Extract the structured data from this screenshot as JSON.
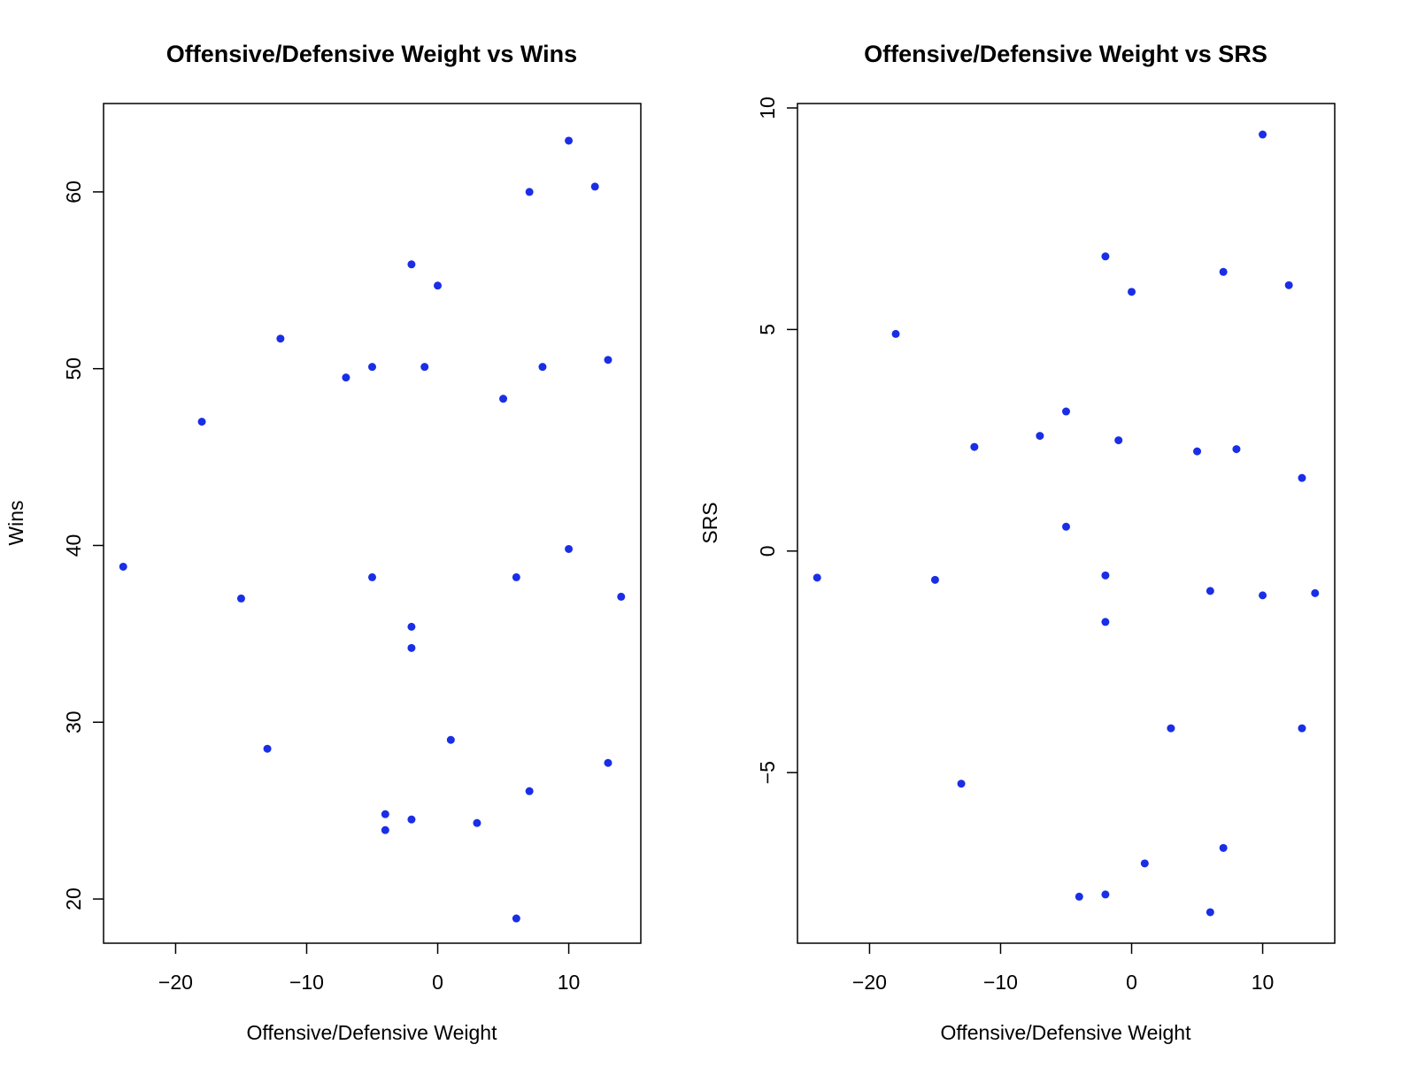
{
  "chart_data": [
    {
      "type": "scatter",
      "title": "Offensive/Defensive Weight vs Wins",
      "xlabel": "Offensive/Defensive Weight",
      "ylabel": "Wins",
      "xlim": [
        -25.5,
        15.5
      ],
      "ylim": [
        17.5,
        65
      ],
      "xticks": [
        -20,
        -10,
        0,
        10
      ],
      "xtick_labels": [
        "−20",
        "−10",
        "0",
        "10"
      ],
      "yticks": [
        20,
        30,
        40,
        50,
        60
      ],
      "ytick_labels": [
        "20",
        "30",
        "40",
        "50",
        "60"
      ],
      "grid": false,
      "point_color": "#1a2ee6",
      "x": [
        -24,
        -18,
        -15,
        -13,
        -12,
        -7,
        -5,
        -5,
        -4,
        -4,
        -2,
        -2,
        -2,
        -2,
        -1,
        0,
        1,
        3,
        5,
        6,
        6,
        7,
        7,
        8,
        10,
        10,
        12,
        13,
        13,
        14
      ],
      "y": [
        38.8,
        47,
        37,
        28.5,
        51.7,
        49.5,
        50.1,
        38.2,
        24.8,
        23.9,
        55.9,
        35.4,
        34.2,
        24.5,
        50.1,
        54.7,
        29.0,
        24.3,
        48.3,
        38.2,
        18.9,
        60.0,
        26.1,
        50.1,
        39.8,
        62.9,
        60.3,
        50.5,
        27.7,
        37.1
      ]
    },
    {
      "type": "scatter",
      "title": "Offensive/Defensive Weight vs SRS",
      "xlabel": "Offensive/Defensive Weight",
      "ylabel": "SRS",
      "xlim": [
        -25.5,
        15.5
      ],
      "ylim": [
        -8.85,
        10.1
      ],
      "xticks": [
        -20,
        -10,
        0,
        10
      ],
      "xtick_labels": [
        "−20",
        "−10",
        "0",
        "10"
      ],
      "yticks": [
        -5,
        0,
        5,
        10
      ],
      "ytick_labels": [
        "−5",
        "0",
        "5",
        "10"
      ],
      "grid": false,
      "point_color": "#1a2ee6",
      "x": [
        -24,
        -18,
        -15,
        -13,
        -12,
        -7,
        -5,
        -5,
        -4,
        -2,
        -2,
        -2,
        -2,
        -1,
        0,
        1,
        3,
        5,
        6,
        6,
        7,
        7,
        8,
        10,
        10,
        12,
        13,
        13,
        14
      ],
      "y": [
        -0.6,
        4.9,
        -0.65,
        -5.25,
        2.35,
        2.6,
        3.15,
        0.55,
        -7.8,
        6.65,
        -0.55,
        -1.6,
        -7.75,
        2.5,
        5.85,
        -7.05,
        -4.0,
        2.25,
        -0.9,
        -8.15,
        6.3,
        -6.7,
        2.3,
        9.4,
        -1.0,
        6.0,
        1.65,
        -4.0,
        -0.95
      ]
    }
  ]
}
